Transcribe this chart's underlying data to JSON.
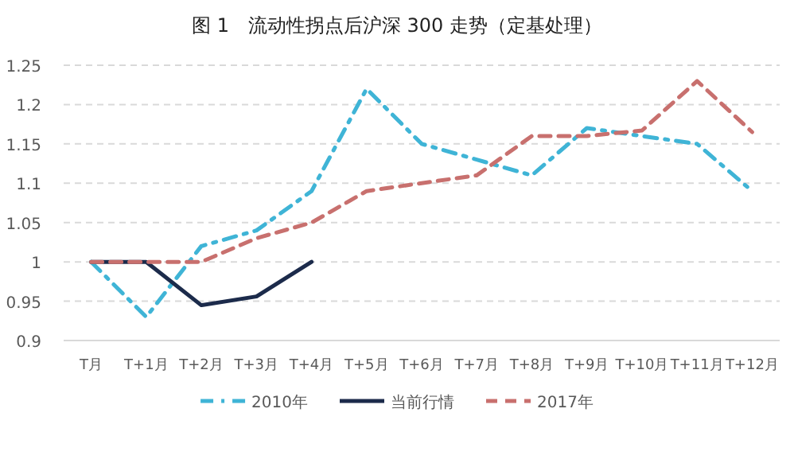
{
  "chart_data": {
    "type": "line",
    "title": "图 1　流动性拐点后沪深 300 走势（定基处理）",
    "categories": [
      "T月",
      "T+1月",
      "T+2月",
      "T+3月",
      "T+4月",
      "T+5月",
      "T+6月",
      "T+7月",
      "T+8月",
      "T+9月",
      "T+10月",
      "T+11月",
      "T+12月"
    ],
    "series": [
      {
        "name": "2010年",
        "color": "#3fb4d6",
        "line_style": "dashdot",
        "values": [
          1.0,
          0.93,
          1.02,
          1.04,
          1.09,
          1.22,
          1.15,
          1.13,
          1.11,
          1.17,
          1.16,
          1.15,
          1.09
        ]
      },
      {
        "name": "当前行情",
        "color": "#1c2b4b",
        "line_style": "solid",
        "values": [
          1.0,
          1.0,
          0.945,
          0.956,
          1.0,
          null,
          null,
          null,
          null,
          null,
          null,
          null,
          null
        ]
      },
      {
        "name": "2017年",
        "color": "#c8706e",
        "line_style": "dashed",
        "values": [
          1.0,
          1.0,
          1.0,
          1.03,
          1.05,
          1.09,
          1.1,
          1.11,
          1.16,
          1.16,
          1.167,
          1.23,
          1.165
        ]
      }
    ],
    "ylim": [
      0.9,
      1.25
    ],
    "yticks": [
      0.9,
      0.95,
      {
        "value": 1,
        "label": "1"
      },
      1.05,
      1.1,
      1.15,
      1.2,
      1.25
    ],
    "grid": "y",
    "legend": "bottom"
  }
}
